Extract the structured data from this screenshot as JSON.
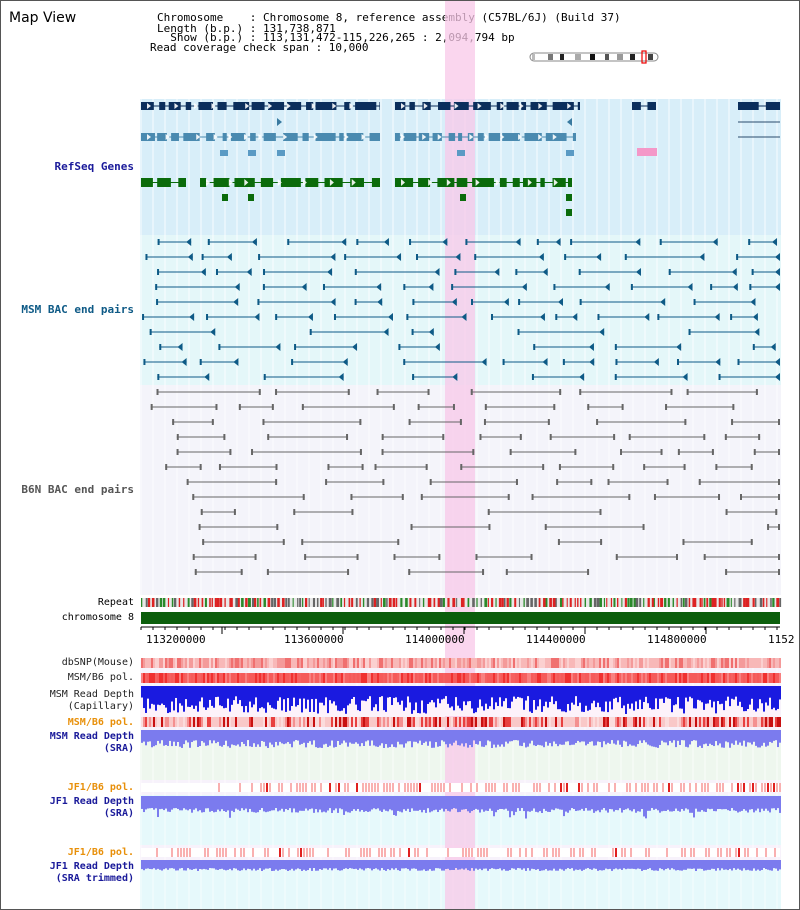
{
  "title": "Map View",
  "info": {
    "chromosome_line": "Chromosome    : Chromosome 8, reference assembly (C57BL/6J) (Build 37)",
    "length_line": "Length (b.p.) : 131,738,871",
    "show_line": "  Show (b.p.) : 113,131,472-115,226,265 : 2,094,794 bp",
    "coverage_line": "Read coverage check span : 10,000"
  },
  "tracks": {
    "refseq": "RefSeq Genes",
    "msm_bac": "MSM BAC end pairs",
    "b6n_bac": "B6N BAC end pairs",
    "repeat": "Repeat",
    "chromosome": "chromosome 8",
    "dbsnp": "dbSNP(Mouse)",
    "msm_b6_pol": "MSM/B6 pol.",
    "msm_depth_cap_1": "MSM Read Depth",
    "msm_depth_cap_2": "(Capillary)",
    "msm_b6_pol_sra": "MSM/B6 pol.",
    "msm_depth_sra_1": "MSM Read Depth",
    "msm_depth_sra_2": "(SRA)",
    "jf1_b6_pol": "JF1/B6 pol.",
    "jf1_depth_1": "JF1 Read Depth",
    "jf1_depth_2": "(SRA)",
    "jf1_b6_pol_trim": "JF1/B6 pol.",
    "jf1_trim_1": "JF1 Read Depth",
    "jf1_trim_2": "(SRA trimmed)"
  },
  "axis": {
    "ticks": [
      "113200000",
      "113600000",
      "114000000",
      "114400000",
      "114800000",
      "1152"
    ]
  },
  "colors": {
    "refseq_dark": "#0b2e5c",
    "refseq_mid": "#4a8ab0",
    "refseq_green": "#0b6b0b",
    "msm_line": "#0e5a86",
    "b6n_line": "#666666",
    "highlight": "#f8c8e8",
    "chromosome": "#0b5e0b",
    "depth_blue": "#1a1ae0",
    "depth_light": "#7b7bee"
  }
}
